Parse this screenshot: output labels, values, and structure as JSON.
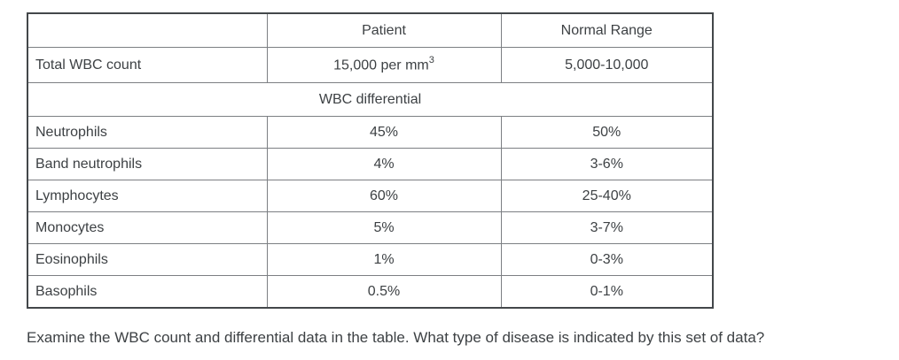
{
  "table": {
    "headers": {
      "col1": "",
      "col2": "Patient",
      "col3": "Normal Range"
    },
    "total_row": {
      "label": "Total WBC count",
      "patient_base": "15,000 per mm",
      "patient_superscript": "3",
      "normal": "5,000-10,000"
    },
    "section_header": "WBC differential",
    "differential_rows": [
      {
        "label": "Neutrophils",
        "patient": "45%",
        "normal": "50%"
      },
      {
        "label": "Band neutrophils",
        "patient": "4%",
        "normal": "3-6%"
      },
      {
        "label": "Lymphocytes",
        "patient": "60%",
        "normal": "25-40%"
      },
      {
        "label": "Monocytes",
        "patient": "5%",
        "normal": "3-7%"
      },
      {
        "label": "Eosinophils",
        "patient": "1%",
        "normal": "0-3%"
      },
      {
        "label": "Basophils",
        "patient": "0.5%",
        "normal": "0-1%"
      }
    ]
  },
  "question": "Examine the WBC count and differential data in the table. What type of disease is indicated by this set of data?",
  "colors": {
    "background": "#ffffff",
    "border_outer": "#43474a",
    "border_inner": "#7c7f83",
    "text": "#3d4144"
  }
}
